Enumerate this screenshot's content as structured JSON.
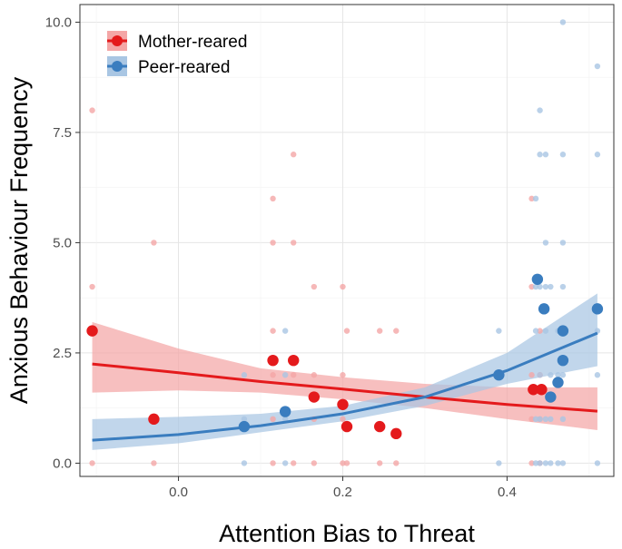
{
  "chart_data": {
    "type": "scatter",
    "title": "",
    "xlabel": "Attention Bias to Threat",
    "ylabel": "Anxious Behaviour Frequency",
    "xlim": [
      -0.12,
      0.53
    ],
    "ylim": [
      -0.3,
      10.4
    ],
    "x_ticks": [
      0.0,
      0.2,
      0.4
    ],
    "x_tick_labels": [
      "0.0",
      "0.2",
      "0.4"
    ],
    "y_ticks": [
      0.0,
      2.5,
      5.0,
      7.5,
      10.0
    ],
    "y_tick_labels": [
      "0.0",
      "2.5",
      "5.0",
      "7.5",
      "10.0"
    ],
    "grid": true,
    "legend_position": "top-left",
    "series": [
      {
        "name": "Mother-reared",
        "color": "#e41a1c",
        "ribbon_color": "#f4a6a6",
        "raw_points": [
          {
            "x": -0.105,
            "y": 8.0
          },
          {
            "x": -0.105,
            "y": 4.0
          },
          {
            "x": -0.105,
            "y": 0.0
          },
          {
            "x": -0.03,
            "y": 5.0
          },
          {
            "x": -0.03,
            "y": 0.0
          },
          {
            "x": 0.115,
            "y": 6.0
          },
          {
            "x": 0.115,
            "y": 5.0
          },
          {
            "x": 0.115,
            "y": 3.0
          },
          {
            "x": 0.115,
            "y": 2.0
          },
          {
            "x": 0.115,
            "y": 1.0
          },
          {
            "x": 0.115,
            "y": 0.0
          },
          {
            "x": 0.14,
            "y": 7.0
          },
          {
            "x": 0.14,
            "y": 5.0
          },
          {
            "x": 0.14,
            "y": 2.0
          },
          {
            "x": 0.14,
            "y": 0.0
          },
          {
            "x": 0.165,
            "y": 4.0
          },
          {
            "x": 0.165,
            "y": 2.0
          },
          {
            "x": 0.165,
            "y": 1.0
          },
          {
            "x": 0.165,
            "y": 0.0
          },
          {
            "x": 0.2,
            "y": 4.0
          },
          {
            "x": 0.2,
            "y": 2.0
          },
          {
            "x": 0.2,
            "y": 1.0
          },
          {
            "x": 0.2,
            "y": 0.0
          },
          {
            "x": 0.205,
            "y": 3.0
          },
          {
            "x": 0.205,
            "y": 0.0
          },
          {
            "x": 0.245,
            "y": 3.0
          },
          {
            "x": 0.245,
            "y": 0.0
          },
          {
            "x": 0.265,
            "y": 3.0
          },
          {
            "x": 0.265,
            "y": 0.0
          },
          {
            "x": 0.43,
            "y": 6.0
          },
          {
            "x": 0.43,
            "y": 4.0
          },
          {
            "x": 0.43,
            "y": 2.0
          },
          {
            "x": 0.43,
            "y": 1.0
          },
          {
            "x": 0.43,
            "y": 0.0
          },
          {
            "x": 0.44,
            "y": 3.0
          },
          {
            "x": 0.44,
            "y": 2.0
          },
          {
            "x": 0.44,
            "y": 1.0
          },
          {
            "x": 0.44,
            "y": 0.0
          }
        ],
        "mean_points": [
          {
            "x": -0.105,
            "y": 3.0
          },
          {
            "x": -0.03,
            "y": 1.0
          },
          {
            "x": 0.115,
            "y": 2.33
          },
          {
            "x": 0.14,
            "y": 2.33
          },
          {
            "x": 0.165,
            "y": 1.5
          },
          {
            "x": 0.2,
            "y": 1.33
          },
          {
            "x": 0.205,
            "y": 0.83
          },
          {
            "x": 0.245,
            "y": 0.83
          },
          {
            "x": 0.265,
            "y": 0.67
          },
          {
            "x": 0.432,
            "y": 1.67
          },
          {
            "x": 0.442,
            "y": 1.67
          }
        ],
        "fit_curve": [
          {
            "x": -0.105,
            "y": 2.25
          },
          {
            "x": 0.0,
            "y": 2.05
          },
          {
            "x": 0.1,
            "y": 1.85
          },
          {
            "x": 0.2,
            "y": 1.68
          },
          {
            "x": 0.3,
            "y": 1.5
          },
          {
            "x": 0.4,
            "y": 1.33
          },
          {
            "x": 0.51,
            "y": 1.18
          }
        ],
        "ci_lower": [
          {
            "x": -0.105,
            "y": 1.6
          },
          {
            "x": 0.0,
            "y": 1.65
          },
          {
            "x": 0.1,
            "y": 1.6
          },
          {
            "x": 0.2,
            "y": 1.45
          },
          {
            "x": 0.3,
            "y": 1.25
          },
          {
            "x": 0.4,
            "y": 1.0
          },
          {
            "x": 0.51,
            "y": 0.75
          }
        ],
        "ci_upper": [
          {
            "x": -0.105,
            "y": 3.2
          },
          {
            "x": 0.0,
            "y": 2.6
          },
          {
            "x": 0.1,
            "y": 2.15
          },
          {
            "x": 0.2,
            "y": 1.95
          },
          {
            "x": 0.3,
            "y": 1.8
          },
          {
            "x": 0.4,
            "y": 1.72
          },
          {
            "x": 0.51,
            "y": 1.72
          }
        ]
      },
      {
        "name": "Peer-reared",
        "color": "#3a7dbf",
        "ribbon_color": "#a9c6e3",
        "raw_points": [
          {
            "x": 0.08,
            "y": 2.0
          },
          {
            "x": 0.08,
            "y": 1.0
          },
          {
            "x": 0.08,
            "y": 0.0
          },
          {
            "x": 0.13,
            "y": 3.0
          },
          {
            "x": 0.13,
            "y": 2.0
          },
          {
            "x": 0.13,
            "y": 1.0
          },
          {
            "x": 0.13,
            "y": 0.0
          },
          {
            "x": 0.39,
            "y": 3.0
          },
          {
            "x": 0.39,
            "y": 2.0
          },
          {
            "x": 0.39,
            "y": 0.0
          },
          {
            "x": 0.435,
            "y": 6.0
          },
          {
            "x": 0.435,
            "y": 4.0
          },
          {
            "x": 0.435,
            "y": 3.0
          },
          {
            "x": 0.435,
            "y": 1.0
          },
          {
            "x": 0.435,
            "y": 0.0
          },
          {
            "x": 0.44,
            "y": 8.0
          },
          {
            "x": 0.44,
            "y": 7.0
          },
          {
            "x": 0.44,
            "y": 4.0
          },
          {
            "x": 0.44,
            "y": 2.0
          },
          {
            "x": 0.44,
            "y": 1.0
          },
          {
            "x": 0.44,
            "y": 0.0
          },
          {
            "x": 0.447,
            "y": 7.0
          },
          {
            "x": 0.447,
            "y": 5.0
          },
          {
            "x": 0.447,
            "y": 4.0
          },
          {
            "x": 0.447,
            "y": 3.0
          },
          {
            "x": 0.447,
            "y": 1.0
          },
          {
            "x": 0.447,
            "y": 0.0
          },
          {
            "x": 0.453,
            "y": 4.0
          },
          {
            "x": 0.453,
            "y": 2.0
          },
          {
            "x": 0.453,
            "y": 1.0
          },
          {
            "x": 0.453,
            "y": 0.0
          },
          {
            "x": 0.462,
            "y": 3.0
          },
          {
            "x": 0.462,
            "y": 2.0
          },
          {
            "x": 0.462,
            "y": 0.0
          },
          {
            "x": 0.468,
            "y": 10.0
          },
          {
            "x": 0.468,
            "y": 7.0
          },
          {
            "x": 0.468,
            "y": 5.0
          },
          {
            "x": 0.468,
            "y": 4.0
          },
          {
            "x": 0.468,
            "y": 2.0
          },
          {
            "x": 0.468,
            "y": 1.0
          },
          {
            "x": 0.468,
            "y": 0.0
          },
          {
            "x": 0.51,
            "y": 9.0
          },
          {
            "x": 0.51,
            "y": 7.0
          },
          {
            "x": 0.51,
            "y": 3.0
          },
          {
            "x": 0.51,
            "y": 2.0
          },
          {
            "x": 0.51,
            "y": 0.0
          }
        ],
        "mean_points": [
          {
            "x": 0.08,
            "y": 0.83
          },
          {
            "x": 0.13,
            "y": 1.17
          },
          {
            "x": 0.39,
            "y": 2.0
          },
          {
            "x": 0.437,
            "y": 4.17
          },
          {
            "x": 0.445,
            "y": 3.5
          },
          {
            "x": 0.453,
            "y": 1.5
          },
          {
            "x": 0.462,
            "y": 1.83
          },
          {
            "x": 0.468,
            "y": 3.0
          },
          {
            "x": 0.468,
            "y": 2.33
          },
          {
            "x": 0.51,
            "y": 3.5
          }
        ],
        "fit_curve": [
          {
            "x": -0.105,
            "y": 0.52
          },
          {
            "x": 0.0,
            "y": 0.65
          },
          {
            "x": 0.1,
            "y": 0.85
          },
          {
            "x": 0.2,
            "y": 1.12
          },
          {
            "x": 0.3,
            "y": 1.5
          },
          {
            "x": 0.4,
            "y": 2.1
          },
          {
            "x": 0.51,
            "y": 2.95
          }
        ],
        "ci_lower": [
          {
            "x": -0.105,
            "y": 0.3
          },
          {
            "x": 0.0,
            "y": 0.45
          },
          {
            "x": 0.1,
            "y": 0.7
          },
          {
            "x": 0.2,
            "y": 0.95
          },
          {
            "x": 0.3,
            "y": 1.3
          },
          {
            "x": 0.4,
            "y": 1.8
          },
          {
            "x": 0.51,
            "y": 2.2
          }
        ],
        "ci_upper": [
          {
            "x": -0.105,
            "y": 1.0
          },
          {
            "x": 0.0,
            "y": 1.05
          },
          {
            "x": 0.1,
            "y": 1.12
          },
          {
            "x": 0.2,
            "y": 1.3
          },
          {
            "x": 0.3,
            "y": 1.72
          },
          {
            "x": 0.4,
            "y": 2.5
          },
          {
            "x": 0.51,
            "y": 3.85
          }
        ]
      }
    ]
  }
}
